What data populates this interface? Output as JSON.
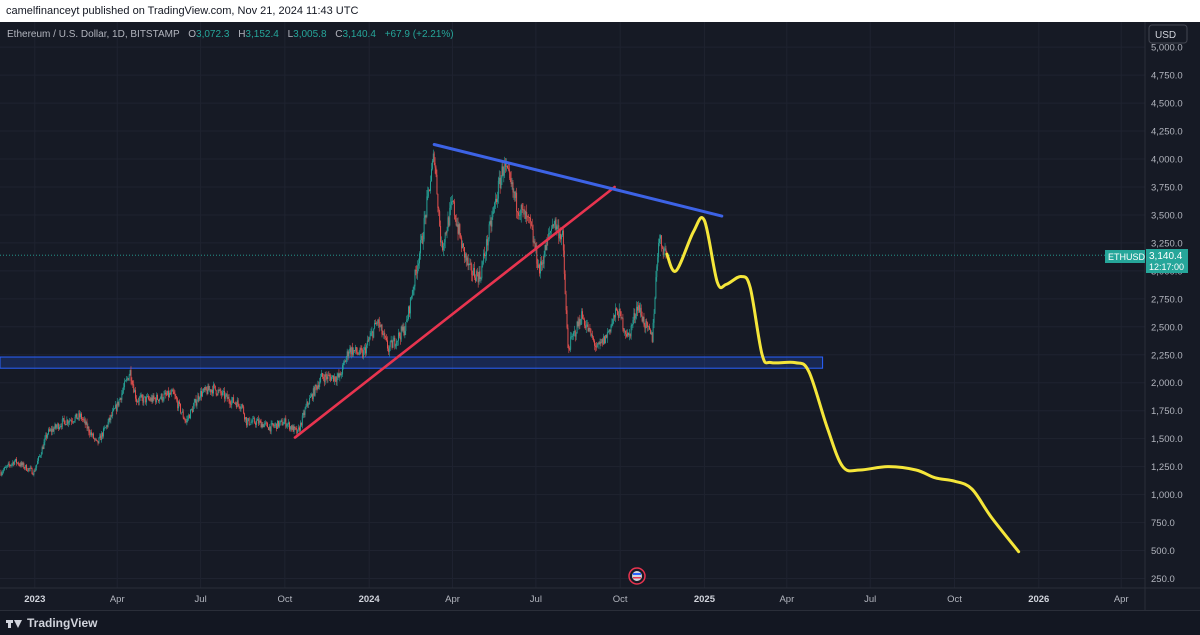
{
  "header": {
    "published": "camelfinanceyt published on TradingView.com, Nov 21, 2024 11:43 UTC"
  },
  "legend": {
    "symbol": "Ethereum / U.S. Dollar, 1D, BITSTAMP",
    "o_label": "O",
    "o_value": "3,072.3",
    "h_label": "H",
    "h_value": "3,152.4",
    "l_label": "L",
    "l_value": "3,005.8",
    "c_label": "C",
    "c_value": "3,140.4",
    "change": "+67.9 (+2.21%)"
  },
  "currency_button": "USD",
  "price_tag": {
    "symbol": "ETHUSD",
    "price": "3,140.4",
    "countdown": "12:17:00"
  },
  "footer": {
    "brand": "TradingView"
  },
  "colors": {
    "background": "#161a25",
    "grid": "#1f2330",
    "axis_text": "#b2b5be",
    "candle_up": "#26a69a",
    "candle_down": "#ef5350",
    "upper_trendline": "#3d63e6",
    "lower_trendline": "#e8344f",
    "support_zone": "#2962ff",
    "forecast": "#f5e63a",
    "price_tag": "#26a69a"
  },
  "chart_data": {
    "type": "candlestick",
    "y_axis": {
      "ticks": [
        "250.0",
        "500.0",
        "750.0",
        "1,000.0",
        "1,250.0",
        "1,500.0",
        "1,750.0",
        "2,000.0",
        "2,250.0",
        "2,500.0",
        "2,750.0",
        "3,000.0",
        "3,250.0",
        "3,500.0",
        "3,750.0",
        "4,000.0",
        "4,250.0",
        "4,500.0",
        "4,750.0",
        "5,000.0"
      ],
      "tick_values": [
        250,
        500,
        750,
        1000,
        1250,
        1500,
        1750,
        2000,
        2250,
        2500,
        2750,
        3000,
        3250,
        3500,
        3750,
        4000,
        4250,
        4500,
        4750,
        5000
      ],
      "range": [
        165,
        5225
      ]
    },
    "x_axis": {
      "range": [
        "2022-11-24",
        "2026-06-26"
      ],
      "ticks": [
        {
          "label": "2023",
          "date": "2023-01-01",
          "bold": true
        },
        {
          "label": "Apr",
          "date": "2023-04-01",
          "bold": false
        },
        {
          "label": "Jul",
          "date": "2023-07-01",
          "bold": false
        },
        {
          "label": "Oct",
          "date": "2023-10-01",
          "bold": false
        },
        {
          "label": "2024",
          "date": "2024-01-01",
          "bold": true
        },
        {
          "label": "Apr",
          "date": "2024-04-01",
          "bold": false
        },
        {
          "label": "Jul",
          "date": "2024-07-01",
          "bold": false
        },
        {
          "label": "Oct",
          "date": "2024-10-01",
          "bold": false
        },
        {
          "label": "2025",
          "date": "2025-01-01",
          "bold": true
        },
        {
          "label": "Apr",
          "date": "2025-04-01",
          "bold": false
        },
        {
          "label": "Jul",
          "date": "2025-07-01",
          "bold": false
        },
        {
          "label": "Oct",
          "date": "2025-10-01",
          "bold": false
        },
        {
          "label": "2026",
          "date": "2026-01-01",
          "bold": true
        },
        {
          "label": "Apr",
          "date": "2026-04-01",
          "bold": false
        }
      ]
    },
    "price_path": [
      [
        "2022-11-25",
        1200
      ],
      [
        "2022-12-10",
        1300
      ],
      [
        "2022-12-31",
        1200
      ],
      [
        "2023-01-15",
        1550
      ],
      [
        "2023-02-01",
        1650
      ],
      [
        "2023-02-20",
        1700
      ],
      [
        "2023-03-10",
        1450
      ],
      [
        "2023-04-01",
        1800
      ],
      [
        "2023-04-15",
        2100
      ],
      [
        "2023-04-22",
        1850
      ],
      [
        "2023-05-10",
        1850
      ],
      [
        "2023-06-01",
        1900
      ],
      [
        "2023-06-15",
        1650
      ],
      [
        "2023-06-30",
        1900
      ],
      [
        "2023-07-15",
        1950
      ],
      [
        "2023-08-01",
        1850
      ],
      [
        "2023-08-15",
        1800
      ],
      [
        "2023-08-20",
        1650
      ],
      [
        "2023-09-01",
        1650
      ],
      [
        "2023-09-15",
        1600
      ],
      [
        "2023-10-01",
        1650
      ],
      [
        "2023-10-15",
        1550
      ],
      [
        "2023-10-25",
        1800
      ],
      [
        "2023-11-10",
        2050
      ],
      [
        "2023-11-30",
        2050
      ],
      [
        "2023-12-10",
        2300
      ],
      [
        "2023-12-25",
        2250
      ],
      [
        "2024-01-10",
        2550
      ],
      [
        "2024-01-22",
        2300
      ],
      [
        "2024-02-10",
        2500
      ],
      [
        "2024-02-28",
        3300
      ],
      [
        "2024-03-12",
        4050
      ],
      [
        "2024-03-20",
        3200
      ],
      [
        "2024-04-01",
        3600
      ],
      [
        "2024-04-12",
        3200
      ],
      [
        "2024-04-20",
        3000
      ],
      [
        "2024-05-01",
        2950
      ],
      [
        "2024-05-20",
        3700
      ],
      [
        "2024-05-27",
        3950
      ],
      [
        "2024-06-10",
        3600
      ],
      [
        "2024-06-25",
        3400
      ],
      [
        "2024-07-05",
        3000
      ],
      [
        "2024-07-20",
        3450
      ],
      [
        "2024-07-30",
        3300
      ],
      [
        "2024-08-05",
        2300
      ],
      [
        "2024-08-20",
        2600
      ],
      [
        "2024-09-06",
        2300
      ],
      [
        "2024-09-15",
        2400
      ],
      [
        "2024-09-28",
        2650
      ],
      [
        "2024-10-10",
        2400
      ],
      [
        "2024-10-20",
        2700
      ],
      [
        "2024-10-29",
        2500
      ],
      [
        "2024-11-05",
        2400
      ],
      [
        "2024-11-12",
        3300
      ],
      [
        "2024-11-21",
        3140.4
      ]
    ],
    "support_zone": {
      "from": "2022-11-24",
      "to": "2025-05-10",
      "low": 2130,
      "high": 2230
    },
    "upper_trendline": [
      [
        "2024-03-12",
        4130
      ],
      [
        "2025-01-20",
        3490
      ]
    ],
    "lower_trendline": [
      [
        "2023-10-12",
        1510
      ],
      [
        "2024-09-25",
        3750
      ]
    ],
    "forecast_path": [
      [
        "2024-11-21",
        3150
      ],
      [
        "2024-12-01",
        3000
      ],
      [
        "2024-12-20",
        3350
      ],
      [
        "2025-01-01",
        3450
      ],
      [
        "2025-01-15",
        2900
      ],
      [
        "2025-01-25",
        2880
      ],
      [
        "2025-02-10",
        2950
      ],
      [
        "2025-02-20",
        2850
      ],
      [
        "2025-03-05",
        2250
      ],
      [
        "2025-03-15",
        2180
      ],
      [
        "2025-04-10",
        2180
      ],
      [
        "2025-04-25",
        2100
      ],
      [
        "2025-05-15",
        1600
      ],
      [
        "2025-06-01",
        1250
      ],
      [
        "2025-06-20",
        1220
      ],
      [
        "2025-07-20",
        1250
      ],
      [
        "2025-08-20",
        1220
      ],
      [
        "2025-09-10",
        1150
      ],
      [
        "2025-10-01",
        1120
      ],
      [
        "2025-10-20",
        1050
      ],
      [
        "2025-11-10",
        800
      ],
      [
        "2025-12-10",
        490
      ]
    ],
    "last_price": 3140.4
  }
}
